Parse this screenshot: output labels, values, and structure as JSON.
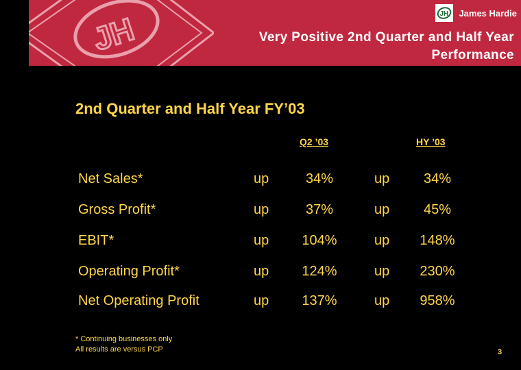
{
  "header": {
    "company": "James Hardie",
    "title_line1": "Very Positive 2nd Quarter and Half Year",
    "title_line2": "Performance",
    "logo_letters": "JH",
    "banner_color": "#c0283f"
  },
  "section_title": "2nd Quarter and Half Year FY’03",
  "columns": {
    "q2": "Q2 ’03",
    "hy": "HY ’03"
  },
  "rows": [
    {
      "label": "Net Sales*",
      "q2_dir": "up",
      "q2_val": "34%",
      "hy_dir": "up",
      "hy_val": "34%"
    },
    {
      "label": "Gross Profit*",
      "q2_dir": "up",
      "q2_val": "37%",
      "hy_dir": "up",
      "hy_val": "45%"
    },
    {
      "label": "EBIT*",
      "q2_dir": "up",
      "q2_val": "104%",
      "hy_dir": "up",
      "hy_val": "148%"
    },
    {
      "label": "Operating Profit*",
      "q2_dir": "up",
      "q2_val": "124%",
      "hy_dir": "up",
      "hy_val": "230%"
    },
    {
      "label": "Net Operating Profit",
      "q2_dir": "up",
      "q2_val": "137%",
      "hy_dir": "up",
      "hy_val": "958%"
    }
  ],
  "footnotes": [
    "* Continuing businesses only",
    "All results are versus PCP"
  ],
  "page_number": "3",
  "text_color": "#ffd54a"
}
